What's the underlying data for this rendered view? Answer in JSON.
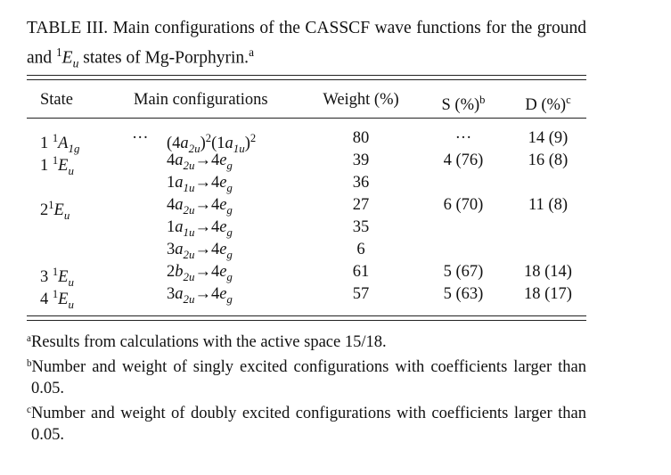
{
  "caption": [
    {
      "r": "TABLE III. Main configurations of the CASSCF wave functions for the ground and "
    },
    {
      "sup": "1"
    },
    {
      "i": "E"
    },
    {
      "sub": "u"
    },
    {
      "r": " states of Mg-Porphyrin."
    },
    {
      "sup": "a"
    }
  ],
  "table": {
    "header": {
      "state": [
        {
          "r": "State"
        }
      ],
      "config": [
        {
          "r": "Main configurations"
        }
      ],
      "weight": [
        {
          "r": "Weight (%)"
        }
      ],
      "s": [
        {
          "r": "S (%)"
        },
        {
          "sup": "b"
        }
      ],
      "d": [
        {
          "r": "D (%)"
        },
        {
          "sup": "c"
        }
      ]
    },
    "rows": [
      {
        "state": [
          {
            "r": "1 "
          },
          {
            "sup": "1"
          },
          {
            "i": "A"
          },
          {
            "sub": "1g"
          }
        ],
        "prefix": "···",
        "config": [
          {
            "r": "(4"
          },
          {
            "i": "a"
          },
          {
            "sub": "2u"
          },
          {
            "r": ")"
          },
          {
            "sup": "2"
          },
          {
            "r": "(1"
          },
          {
            "i": "a"
          },
          {
            "sub": "1u"
          },
          {
            "r": ")"
          },
          {
            "sup": "2"
          }
        ],
        "weight": 80,
        "s": "···",
        "d": "14 (9)"
      },
      {
        "state": [
          {
            "r": "1 "
          },
          {
            "sup": "1"
          },
          {
            "i": "E"
          },
          {
            "sub": "u"
          }
        ],
        "config": [
          {
            "r": "4"
          },
          {
            "i": "a"
          },
          {
            "sub": "2u"
          },
          {
            "r": "→4"
          },
          {
            "i": "e"
          },
          {
            "sub": "g"
          }
        ],
        "weight": 39,
        "s": "4 (76)",
        "d": "16 (8)"
      },
      {
        "config": [
          {
            "r": "1"
          },
          {
            "i": "a"
          },
          {
            "sub": "1u"
          },
          {
            "r": "→4"
          },
          {
            "i": "e"
          },
          {
            "sub": "g"
          }
        ],
        "weight": 36
      },
      {
        "state": [
          {
            "r": "2"
          },
          {
            "sup": "1"
          },
          {
            "i": "E"
          },
          {
            "sub": "u"
          }
        ],
        "config": [
          {
            "r": "4"
          },
          {
            "i": "a"
          },
          {
            "sub": "2u"
          },
          {
            "r": "→4"
          },
          {
            "i": "e"
          },
          {
            "sub": "g"
          }
        ],
        "weight": 27,
        "s": "6 (70)",
        "d": "11 (8)"
      },
      {
        "config": [
          {
            "r": "1"
          },
          {
            "i": "a"
          },
          {
            "sub": "1u"
          },
          {
            "r": "→4"
          },
          {
            "i": "e"
          },
          {
            "sub": "g"
          }
        ],
        "weight": 35
      },
      {
        "config": [
          {
            "r": "3"
          },
          {
            "i": "a"
          },
          {
            "sub": "2u"
          },
          {
            "r": "→4"
          },
          {
            "i": "e"
          },
          {
            "sub": "g"
          }
        ],
        "weight": 6
      },
      {
        "state": [
          {
            "r": "3 "
          },
          {
            "sup": "1"
          },
          {
            "i": "E"
          },
          {
            "sub": "u"
          }
        ],
        "config": [
          {
            "r": "2"
          },
          {
            "i": "b"
          },
          {
            "sub": "2u"
          },
          {
            "r": "→4"
          },
          {
            "i": "e"
          },
          {
            "sub": "g"
          }
        ],
        "weight": 61,
        "s": "5 (67)",
        "d": "18 (14)"
      },
      {
        "state": [
          {
            "r": "4 "
          },
          {
            "sup": "1"
          },
          {
            "i": "E"
          },
          {
            "sub": "u"
          }
        ],
        "config": [
          {
            "r": "3"
          },
          {
            "i": "a"
          },
          {
            "sub": "2u"
          },
          {
            "r": "→4"
          },
          {
            "i": "e"
          },
          {
            "sub": "g"
          }
        ],
        "weight": 57,
        "s": "5 (63)",
        "d": "18 (17)"
      }
    ]
  },
  "footnotes": [
    [
      {
        "sup": "a"
      },
      {
        "r": "Results from calculations with the active space 15/18."
      }
    ],
    [
      {
        "sup": "b"
      },
      {
        "r": "Number and weight of singly excited configurations with coefficients larger than 0.05."
      }
    ],
    [
      {
        "sup": "c"
      },
      {
        "r": "Number and weight of doubly excited configurations with coefficients larger than 0.05."
      }
    ]
  ]
}
